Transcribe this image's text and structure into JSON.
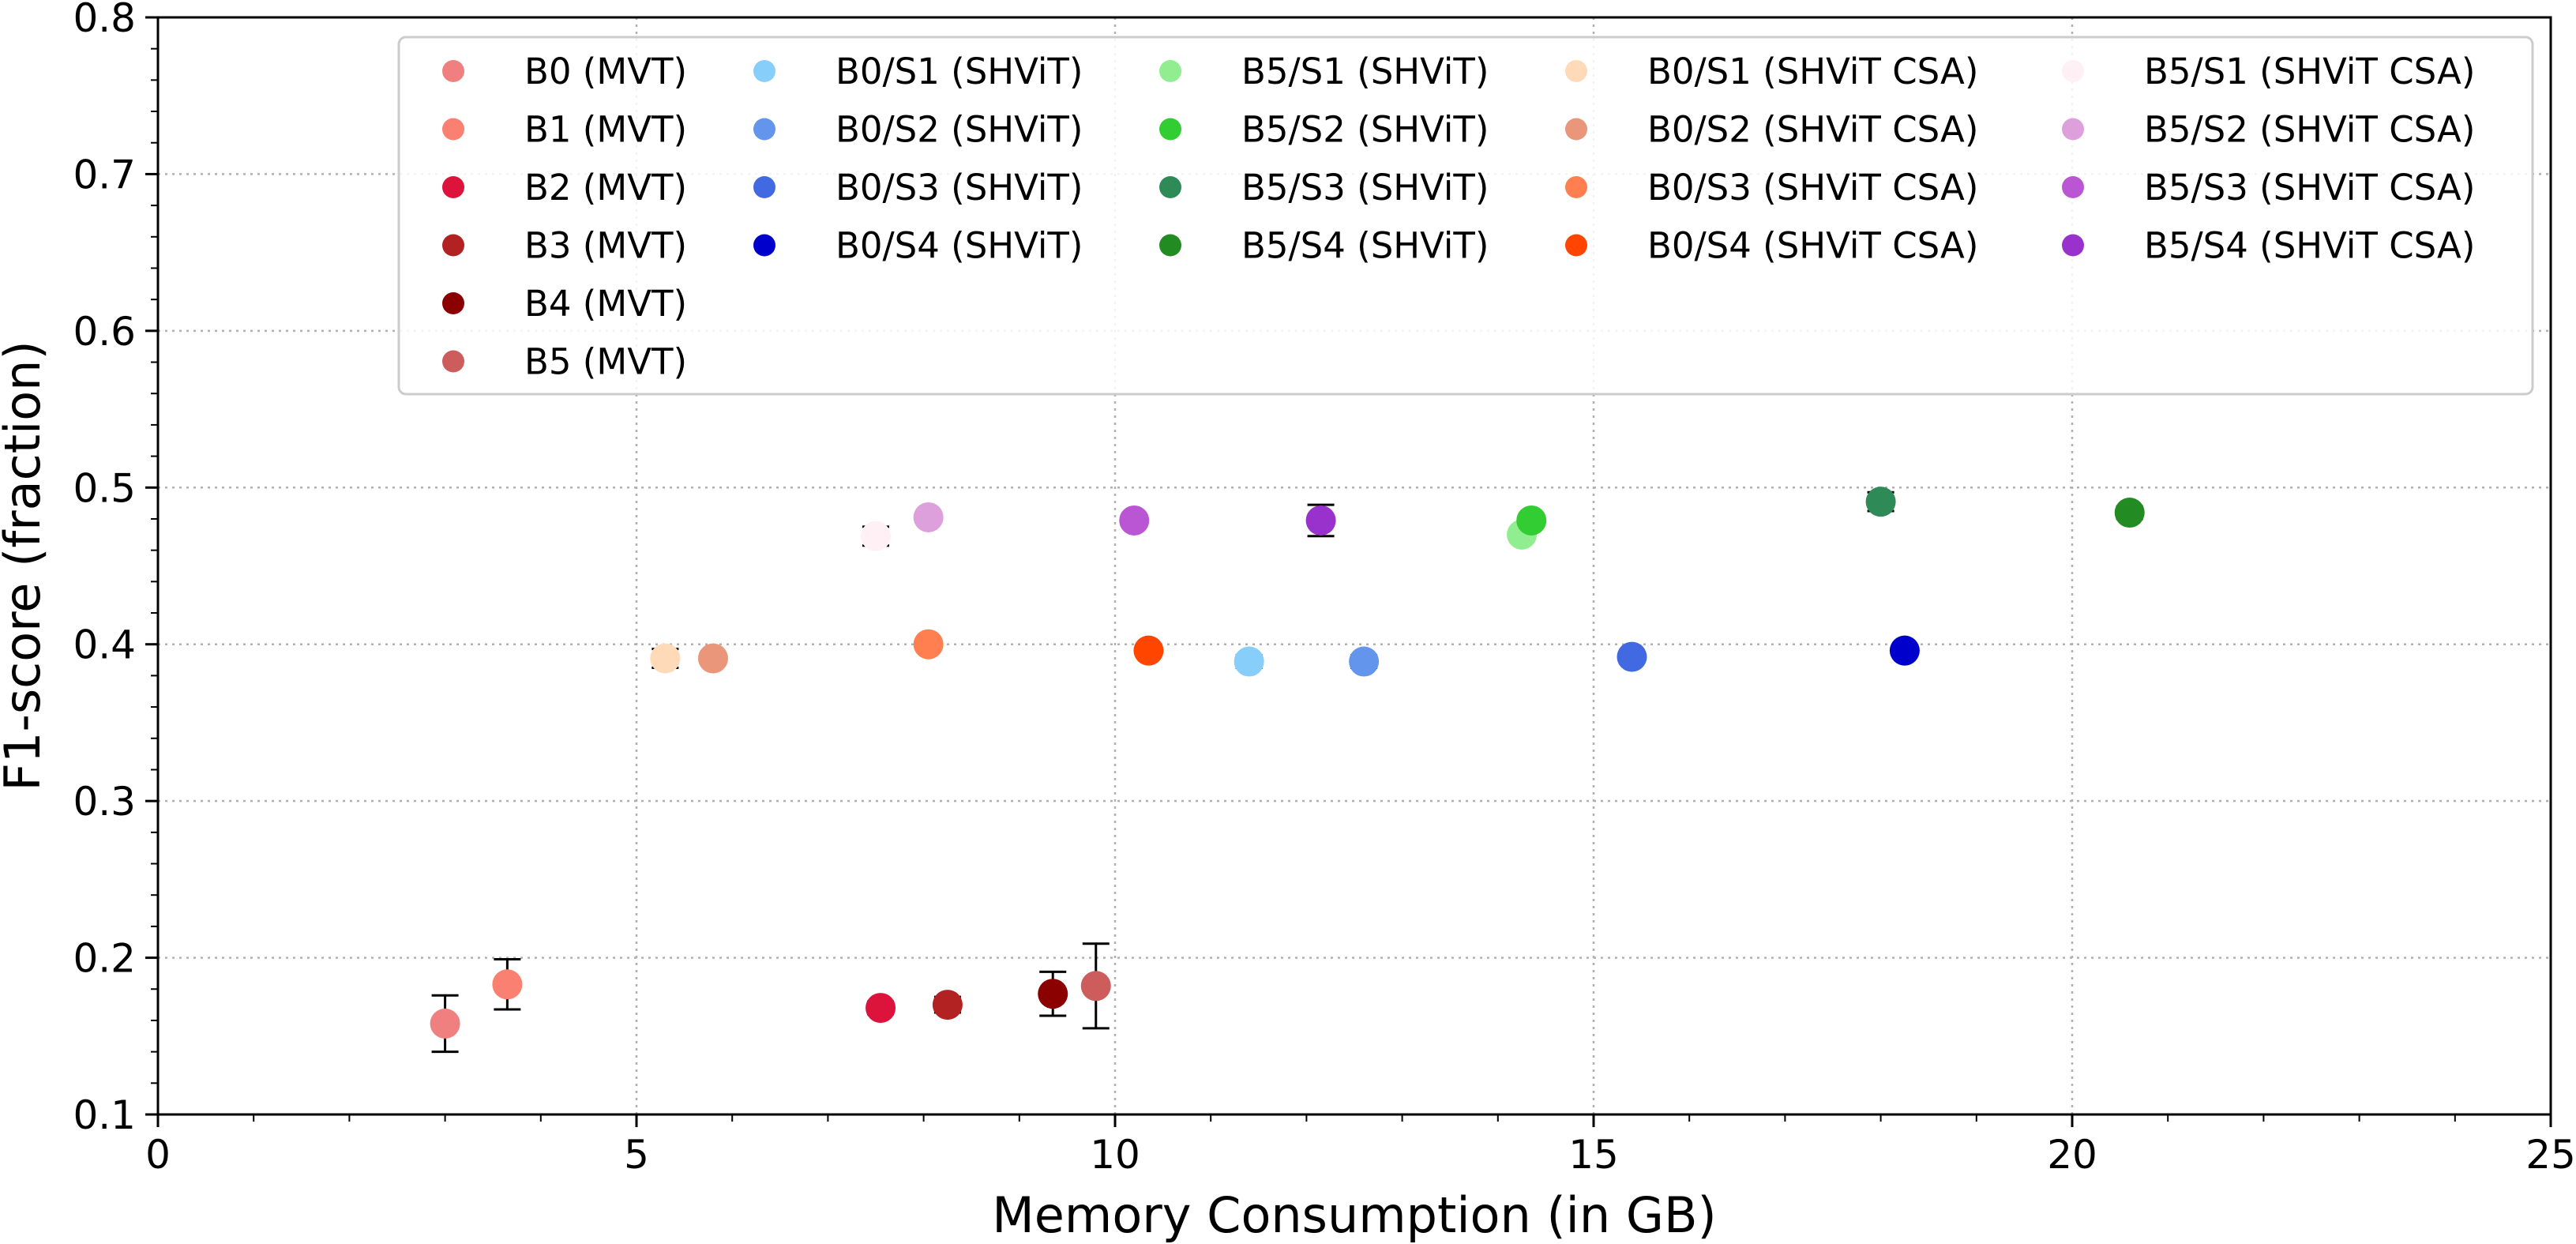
{
  "chart_data": {
    "type": "scatter",
    "xlabel": "Memory Consumption (in GB)",
    "ylabel": "F1-score (fraction)",
    "xlim": [
      0,
      25
    ],
    "ylim": [
      0.1,
      0.8
    ],
    "x_ticks": [
      "0",
      "5",
      "10",
      "15",
      "20",
      "25"
    ],
    "y_ticks": [
      "0.1",
      "0.2",
      "0.3",
      "0.4",
      "0.5",
      "0.6",
      "0.7",
      "0.8"
    ],
    "grid": true,
    "legend_position": "top-right",
    "legend_columns": 5,
    "series": [
      {
        "name": "B0 (MVT)",
        "color": "#f08080",
        "x": 3.0,
        "y": 0.158,
        "err": 0.018
      },
      {
        "name": "B1 (MVT)",
        "color": "#fa8072",
        "x": 3.65,
        "y": 0.183,
        "err": 0.016
      },
      {
        "name": "B2 (MVT)",
        "color": "#dc143c",
        "x": 7.55,
        "y": 0.168,
        "err": 0.004
      },
      {
        "name": "B3 (MVT)",
        "color": "#b22222",
        "x": 8.25,
        "y": 0.17,
        "err": 0.005
      },
      {
        "name": "B4 (MVT)",
        "color": "#8b0000",
        "x": 9.35,
        "y": 0.177,
        "err": 0.014
      },
      {
        "name": "B5 (MVT)",
        "color": "#cd5c5c",
        "x": 9.8,
        "y": 0.182,
        "err": 0.027
      },
      {
        "name": "B0/S1 (SHViT)",
        "color": "#87cefa",
        "x": 11.4,
        "y": 0.389,
        "err": 0.004
      },
      {
        "name": "B0/S2 (SHViT)",
        "color": "#6495ed",
        "x": 12.6,
        "y": 0.389,
        "err": 0.004
      },
      {
        "name": "B0/S3 (SHViT)",
        "color": "#4169e1",
        "x": 15.4,
        "y": 0.392,
        "err": 0.003
      },
      {
        "name": "B0/S4 (SHViT)",
        "color": "#0000cd",
        "x": 18.25,
        "y": 0.396,
        "err": 0.003
      },
      {
        "name": "B5/S1 (SHViT)",
        "color": "#90ee90",
        "x": 14.25,
        "y": 0.47,
        "err": 0.003
      },
      {
        "name": "B5/S2 (SHViT)",
        "color": "#32cd32",
        "x": 14.35,
        "y": 0.479,
        "err": 0.003
      },
      {
        "name": "B5/S3 (SHViT)",
        "color": "#2e8b57",
        "x": 18.0,
        "y": 0.491,
        "err": 0.006
      },
      {
        "name": "B5/S4 (SHViT)",
        "color": "#228b22",
        "x": 20.6,
        "y": 0.484,
        "err": 0.004
      },
      {
        "name": "B0/S1 (SHViT CSA)",
        "color": "#ffdab9",
        "x": 5.3,
        "y": 0.391,
        "err": 0.006
      },
      {
        "name": "B0/S2 (SHViT CSA)",
        "color": "#e9967a",
        "x": 5.8,
        "y": 0.391,
        "err": 0.003
      },
      {
        "name": "B0/S3 (SHViT CSA)",
        "color": "#ff7f50",
        "x": 8.05,
        "y": 0.4,
        "err": 0.003
      },
      {
        "name": "B0/S4 (SHViT CSA)",
        "color": "#ff4500",
        "x": 10.35,
        "y": 0.396,
        "err": 0.003
      },
      {
        "name": "B5/S1 (SHViT CSA)",
        "color": "#fff0f5",
        "x": 7.5,
        "y": 0.469,
        "err": 0.006
      },
      {
        "name": "B5/S2 (SHViT CSA)",
        "color": "#dda0dd",
        "x": 8.05,
        "y": 0.481,
        "err": 0.003
      },
      {
        "name": "B5/S3 (SHViT CSA)",
        "color": "#ba55d3",
        "x": 10.2,
        "y": 0.479,
        "err": 0.003
      },
      {
        "name": "B5/S4 (SHViT CSA)",
        "color": "#9932cc",
        "x": 12.15,
        "y": 0.479,
        "err": 0.01
      }
    ]
  }
}
